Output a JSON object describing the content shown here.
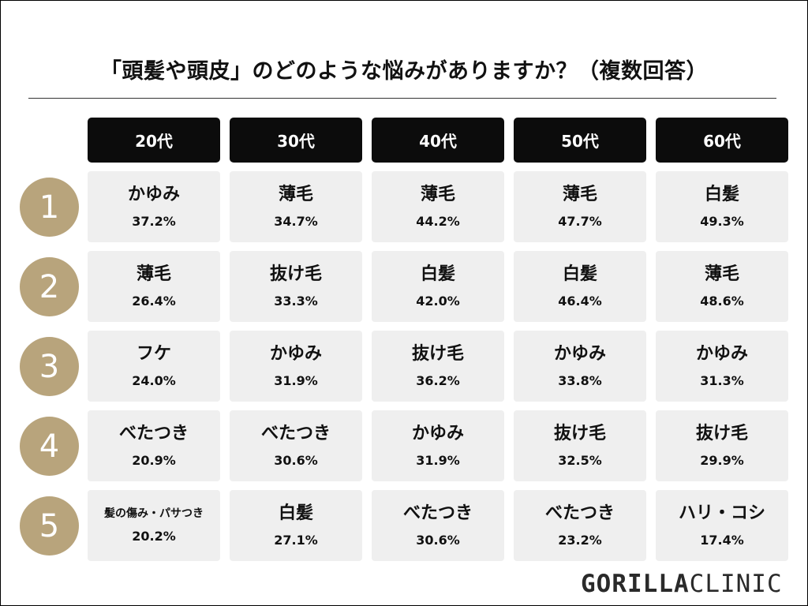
{
  "title": "「頭髪や頭皮」のどのような悩みがありますか？（複数回答）",
  "columns": [
    "20代",
    "30代",
    "40代",
    "50代",
    "60代"
  ],
  "rows": [
    {
      "rank": "1",
      "cells": [
        {
          "concern": "かゆみ",
          "pct": "37.2%"
        },
        {
          "concern": "薄毛",
          "pct": "34.7%"
        },
        {
          "concern": "薄毛",
          "pct": "44.2%"
        },
        {
          "concern": "薄毛",
          "pct": "47.7%"
        },
        {
          "concern": "白髪",
          "pct": "49.3%"
        }
      ]
    },
    {
      "rank": "2",
      "cells": [
        {
          "concern": "薄毛",
          "pct": "26.4%"
        },
        {
          "concern": "抜け毛",
          "pct": "33.3%"
        },
        {
          "concern": "白髪",
          "pct": "42.0%"
        },
        {
          "concern": "白髪",
          "pct": "46.4%"
        },
        {
          "concern": "薄毛",
          "pct": "48.6%"
        }
      ]
    },
    {
      "rank": "3",
      "cells": [
        {
          "concern": "フケ",
          "pct": "24.0%"
        },
        {
          "concern": "かゆみ",
          "pct": "31.9%"
        },
        {
          "concern": "抜け毛",
          "pct": "36.2%"
        },
        {
          "concern": "かゆみ",
          "pct": "33.8%"
        },
        {
          "concern": "かゆみ",
          "pct": "31.3%"
        }
      ]
    },
    {
      "rank": "4",
      "cells": [
        {
          "concern": "べたつき",
          "pct": "20.9%"
        },
        {
          "concern": "べたつき",
          "pct": "30.6%"
        },
        {
          "concern": "かゆみ",
          "pct": "31.9%"
        },
        {
          "concern": "抜け毛",
          "pct": "32.5%"
        },
        {
          "concern": "抜け毛",
          "pct": "29.9%"
        }
      ]
    },
    {
      "rank": "5",
      "cells": [
        {
          "concern": "髪の傷み・パサつき",
          "pct": "20.2%"
        },
        {
          "concern": "白髪",
          "pct": "27.1%"
        },
        {
          "concern": "べたつき",
          "pct": "30.6%"
        },
        {
          "concern": "べたつき",
          "pct": "23.2%"
        },
        {
          "concern": "ハリ・コシ",
          "pct": "17.4%"
        }
      ]
    }
  ],
  "logo": {
    "part1": "GORILLA",
    "part2": "CLINIC"
  },
  "colors": {
    "header_bg": "#0c0c0c",
    "rank_circle": "#b8a47c",
    "cell_bg": "#efefef"
  }
}
